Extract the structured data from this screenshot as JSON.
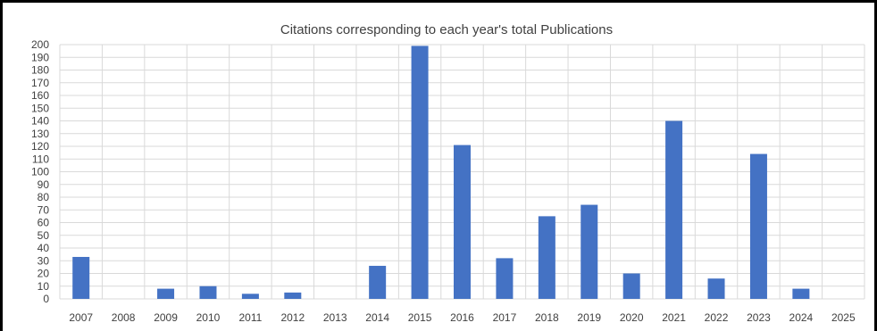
{
  "chart_data": {
    "type": "bar",
    "title": "Citations corresponding to each year's total Publications",
    "xlabel": "",
    "ylabel": "",
    "categories": [
      "2007",
      "2008",
      "2009",
      "2010",
      "2011",
      "2012",
      "2013",
      "2014",
      "2015",
      "2016",
      "2017",
      "2018",
      "2019",
      "2020",
      "2021",
      "2022",
      "2023",
      "2024",
      "2025"
    ],
    "values": [
      33,
      0,
      8,
      10,
      4,
      5,
      0,
      26,
      199,
      121,
      32,
      65,
      74,
      20,
      140,
      16,
      114,
      8,
      0
    ],
    "ylim": [
      0,
      200
    ],
    "ytick_step": 10,
    "grid": true,
    "legend": "none",
    "colors": {
      "bar": "#4472C4",
      "grid": "#D9D9D9",
      "text": "#404040"
    }
  }
}
